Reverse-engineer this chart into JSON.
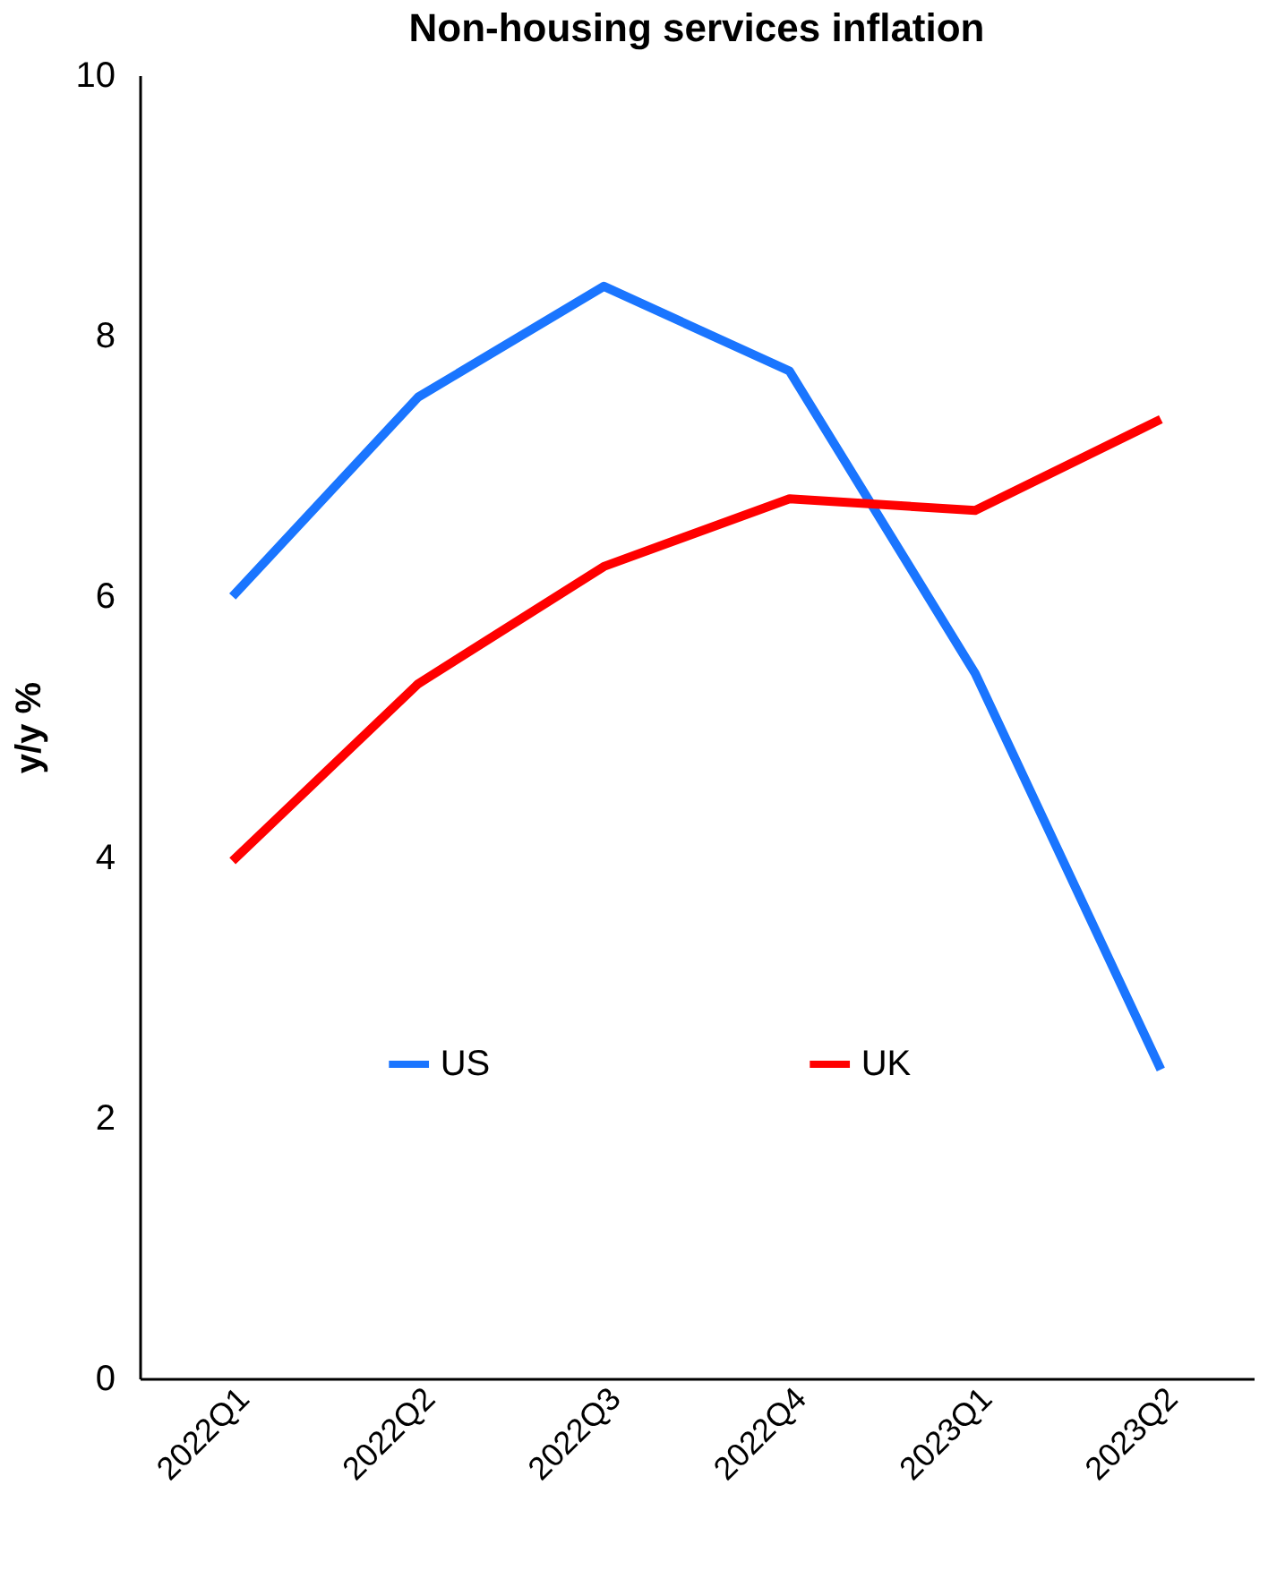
{
  "chart_data": {
    "type": "line",
    "title": "Non-housing services inflation",
    "ylabel": "y/y %",
    "categories": [
      "2022Q1",
      "2022Q2",
      "2022Q3",
      "2022Q4",
      "2023Q1",
      "2023Q2"
    ],
    "series": [
      {
        "name": "US",
        "color": "#1a75ff",
        "values": [
          6.0,
          7.53,
          8.38,
          7.73,
          5.41,
          2.37
        ]
      },
      {
        "name": "UK",
        "color": "#ff0000",
        "values": [
          3.97,
          5.33,
          6.23,
          6.75,
          6.66,
          7.36
        ]
      }
    ],
    "ylim": [
      0,
      10
    ],
    "yticks": [
      0,
      2,
      4,
      6,
      8,
      10
    ],
    "grid": false,
    "legend": "center",
    "line_style": "solid",
    "marker": "none"
  }
}
